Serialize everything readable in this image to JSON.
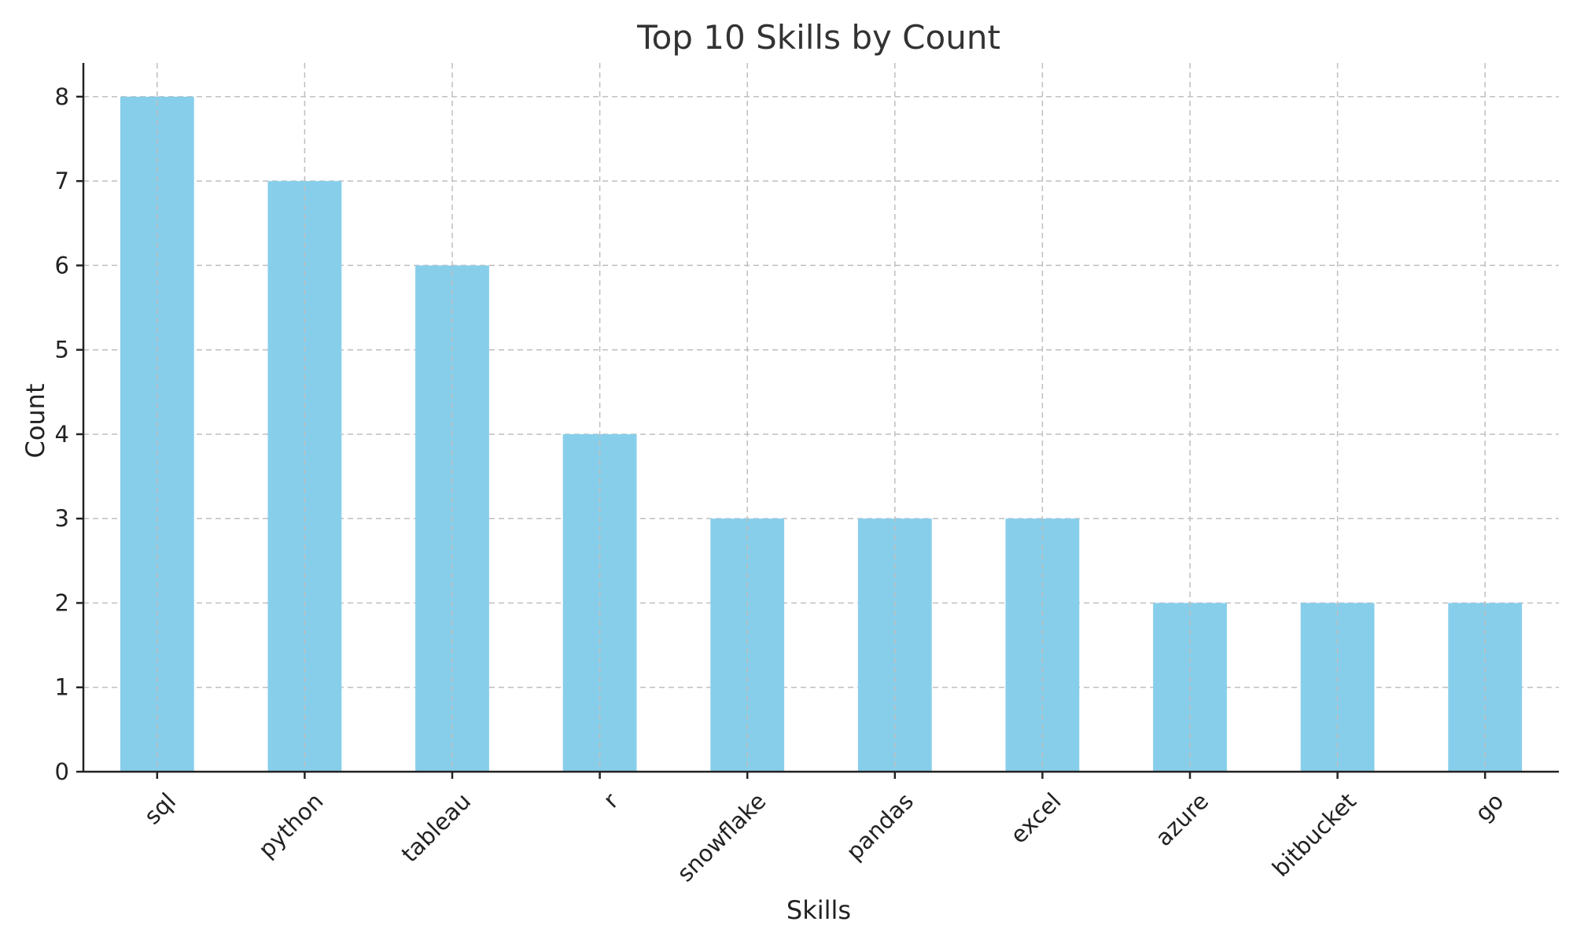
{
  "chart_data": {
    "type": "bar",
    "title": "Top 10 Skills by Count",
    "xlabel": "Skills",
    "ylabel": "Count",
    "categories": [
      "sql",
      "python",
      "tableau",
      "r",
      "snowflake",
      "pandas",
      "excel",
      "azure",
      "bitbucket",
      "go"
    ],
    "values": [
      8,
      7,
      6,
      4,
      3,
      3,
      3,
      2,
      2,
      2
    ],
    "ylim": [
      0,
      8.4
    ],
    "yticks": [
      0,
      1,
      2,
      3,
      4,
      5,
      6,
      7,
      8
    ],
    "grid": true,
    "bar_color": "#87CEEB"
  }
}
